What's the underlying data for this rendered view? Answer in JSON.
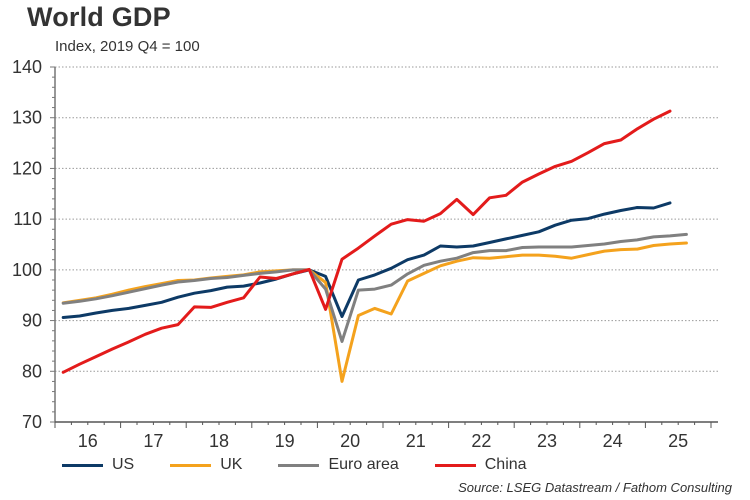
{
  "chart_data": {
    "type": "line",
    "title": "World GDP",
    "subtitle": "Index, 2019 Q4 = 100",
    "xlabel": "",
    "ylabel": "",
    "ylim": [
      70,
      140
    ],
    "yticks": [
      70,
      80,
      90,
      100,
      110,
      120,
      130,
      140
    ],
    "xlim": [
      "2016Q1",
      "2025Q4"
    ],
    "xtick_labels": [
      "16",
      "17",
      "18",
      "19",
      "20",
      "21",
      "22",
      "23",
      "24",
      "25"
    ],
    "grid": "horizontal-dotted",
    "legend_position": "bottom",
    "x": [
      "2016Q1",
      "2016Q2",
      "2016Q3",
      "2016Q4",
      "2017Q1",
      "2017Q2",
      "2017Q3",
      "2017Q4",
      "2018Q1",
      "2018Q2",
      "2018Q3",
      "2018Q4",
      "2019Q1",
      "2019Q2",
      "2019Q3",
      "2019Q4",
      "2020Q1",
      "2020Q2",
      "2020Q3",
      "2020Q4",
      "2021Q1",
      "2021Q2",
      "2021Q3",
      "2021Q4",
      "2022Q1",
      "2022Q2",
      "2022Q3",
      "2022Q4",
      "2023Q1",
      "2023Q2",
      "2023Q3",
      "2023Q4",
      "2024Q1",
      "2024Q2",
      "2024Q3",
      "2024Q4",
      "2025Q1",
      "2025Q2",
      "2025Q3"
    ],
    "series": [
      {
        "name": "US",
        "color": "#0d3a66",
        "values": [
          90.6,
          90.9,
          91.5,
          92.0,
          92.4,
          93.0,
          93.6,
          94.6,
          95.4,
          95.9,
          96.6,
          96.8,
          97.4,
          98.2,
          99.2,
          100.0,
          98.7,
          90.8,
          98.0,
          99.0,
          100.3,
          102.0,
          102.9,
          104.7,
          104.5,
          104.7,
          105.4,
          106.1,
          106.8,
          107.5,
          108.8,
          109.8,
          110.1,
          111.0,
          111.7,
          112.3,
          112.2,
          113.2,
          null
        ]
      },
      {
        "name": "UK",
        "color": "#f4a21d",
        "values": [
          93.5,
          94.0,
          94.5,
          95.2,
          96.0,
          96.7,
          97.3,
          97.9,
          98.0,
          98.4,
          98.7,
          99.0,
          99.6,
          99.8,
          100.0,
          100.0,
          97.5,
          78.0,
          91.0,
          92.4,
          91.3,
          97.8,
          99.3,
          100.8,
          101.7,
          102.4,
          102.3,
          102.6,
          102.9,
          102.9,
          102.7,
          102.3,
          103.0,
          103.7,
          104.0,
          104.1,
          104.8,
          105.1,
          105.3
        ]
      },
      {
        "name": "Euro area",
        "color": "#808080",
        "values": [
          93.4,
          93.8,
          94.3,
          94.9,
          95.6,
          96.3,
          97.0,
          97.6,
          97.9,
          98.3,
          98.5,
          98.9,
          99.3,
          99.6,
          100.0,
          100.0,
          96.2,
          85.9,
          96.0,
          96.2,
          97.0,
          99.2,
          100.9,
          101.7,
          102.3,
          103.4,
          103.8,
          103.8,
          104.4,
          104.5,
          104.5,
          104.5,
          104.8,
          105.1,
          105.6,
          105.9,
          106.5,
          106.7,
          107.0
        ]
      },
      {
        "name": "China",
        "color": "#e31b1b",
        "values": [
          79.8,
          81.4,
          82.9,
          84.4,
          85.8,
          87.3,
          88.5,
          89.2,
          92.7,
          92.6,
          93.6,
          94.5,
          98.6,
          98.3,
          99.2,
          100.1,
          92.2,
          102.1,
          104.3,
          106.7,
          109.0,
          109.9,
          109.6,
          111.1,
          113.9,
          110.9,
          114.2,
          114.7,
          117.3,
          118.9,
          120.4,
          121.4,
          123.1,
          124.9,
          125.6,
          127.8,
          129.7,
          131.3,
          null
        ]
      }
    ],
    "source": "Source: LSEG Datastream / Fathom Consulting"
  },
  "header": {
    "title": "World GDP",
    "subtitle": "Index, 2019 Q4 = 100"
  },
  "legend": {
    "items": [
      {
        "label": "US",
        "color": "#0d3a66"
      },
      {
        "label": "UK",
        "color": "#f4a21d"
      },
      {
        "label": "Euro area",
        "color": "#808080"
      },
      {
        "label": "China",
        "color": "#e31b1b"
      }
    ]
  },
  "footer": {
    "source": "Source: LSEG Datastream / Fathom Consulting"
  }
}
